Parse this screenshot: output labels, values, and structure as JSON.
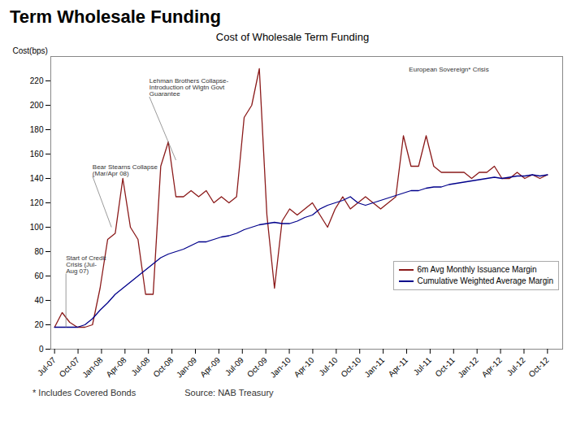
{
  "chart_data": {
    "type": "line",
    "title": "Term Wholesale Funding",
    "subtitle": "Cost of Wholesale Term Funding",
    "ylabel": "Cost(bps)",
    "x": [
      0,
      1,
      2,
      3,
      4,
      5,
      6,
      7,
      8,
      9,
      10,
      11,
      12,
      13,
      14,
      15,
      16,
      17,
      18,
      19,
      20,
      21,
      22,
      23,
      24,
      25,
      26,
      27,
      28,
      29,
      30,
      31,
      32,
      33,
      34,
      35,
      36,
      37,
      38,
      39,
      40,
      41,
      42,
      43,
      44,
      45,
      46,
      47,
      48,
      49,
      50,
      51,
      52,
      53,
      54,
      55,
      56,
      57,
      58,
      59,
      60,
      61,
      62,
      63,
      64,
      65
    ],
    "xlim": [
      -0.5,
      67
    ],
    "xticks": [
      {
        "value": 0,
        "label": "Jul-07"
      },
      {
        "value": 3.0952380952380953,
        "label": "Oct-07"
      },
      {
        "value": 6.190476190476191,
        "label": "Jan-08"
      },
      {
        "value": 9.285714285714286,
        "label": "Apr-08"
      },
      {
        "value": 12.380952380952381,
        "label": "Jul-08"
      },
      {
        "value": 15.476190476190476,
        "label": "Oct-08"
      },
      {
        "value": 18.571428571428573,
        "label": "Jan-09"
      },
      {
        "value": 21.666666666666668,
        "label": "Apr-09"
      },
      {
        "value": 24.761904761904763,
        "label": "Jul-09"
      },
      {
        "value": 27.857142857142858,
        "label": "Oct-09"
      },
      {
        "value": 30.952380952380953,
        "label": "Jan-10"
      },
      {
        "value": 34.04761904761905,
        "label": "Apr-10"
      },
      {
        "value": 37.142857142857146,
        "label": "Jul-10"
      },
      {
        "value": 40.23809523809524,
        "label": "Oct-10"
      },
      {
        "value": 43.333333333333336,
        "label": "Jan-11"
      },
      {
        "value": 46.42857142857143,
        "label": "Apr-11"
      },
      {
        "value": 49.523809523809526,
        "label": "Jul-11"
      },
      {
        "value": 52.61904761904762,
        "label": "Oct-11"
      },
      {
        "value": 55.714285714285715,
        "label": "Jan-12"
      },
      {
        "value": 58.80952380952381,
        "label": "Apr-12"
      },
      {
        "value": 61.904761904761905,
        "label": "Jul-12"
      },
      {
        "value": 65,
        "label": "Oct-12"
      }
    ],
    "ylim": [
      0,
      240
    ],
    "yticks": [
      0,
      20,
      40,
      60,
      80,
      100,
      120,
      140,
      160,
      180,
      200,
      220
    ],
    "grid": false,
    "legend": "lower right",
    "series": [
      {
        "name": "6m Avg Monthly Issuance Margin",
        "color": "#8B1A1A",
        "values": [
          18,
          30,
          22,
          18,
          18,
          20,
          50,
          90,
          95,
          140,
          100,
          90,
          45,
          45,
          150,
          170,
          125,
          125,
          130,
          125,
          130,
          120,
          125,
          120,
          125,
          190,
          200,
          230,
          110,
          50,
          105,
          115,
          110,
          115,
          120,
          110,
          100,
          115,
          125,
          115,
          120,
          125,
          120,
          115,
          120,
          125,
          175,
          150,
          150,
          175,
          150,
          145,
          145,
          145,
          145,
          140,
          145,
          145,
          150,
          140,
          140,
          145,
          140,
          143,
          140,
          143
        ]
      },
      {
        "name": "Cumulative Weighted Average Margin",
        "color": "#00008B",
        "values": [
          18,
          18,
          18,
          18,
          20,
          25,
          32,
          38,
          45,
          50,
          55,
          60,
          65,
          70,
          75,
          78,
          80,
          82,
          85,
          88,
          88,
          90,
          92,
          93,
          95,
          98,
          100,
          102,
          103,
          104,
          103,
          103,
          105,
          108,
          110,
          115,
          118,
          120,
          122,
          125,
          120,
          118,
          120,
          122,
          124,
          126,
          128,
          130,
          130,
          132,
          133,
          133,
          135,
          136,
          137,
          138,
          139,
          140,
          141,
          140,
          141,
          142,
          142,
          143,
          142,
          143
        ]
      }
    ],
    "annotations": [
      {
        "text": "Start of Credit\nCrisis (Jul-\nAug 07)",
        "x": 1.5,
        "y": 62,
        "arrow_x": 1.5,
        "arrow_y": 18
      },
      {
        "text": "Bear Stearns Collapse\n(Mar/Apr 08)",
        "x": 5.0,
        "y": 142,
        "arrow_x": 7.5,
        "arrow_y": 100
      },
      {
        "text": "Lehman Brothers Collapse-\nIntroduction of Wlgtn Govt\nGuarantee",
        "x": 12.5,
        "y": 207,
        "arrow_x": 16.0,
        "arrow_y": 155
      },
      {
        "text": "European Sovereign* Crisis",
        "x": 52,
        "y": 228
      }
    ],
    "notes": [
      "* Includes Covered Bonds",
      "Source: NAB Treasury"
    ]
  }
}
